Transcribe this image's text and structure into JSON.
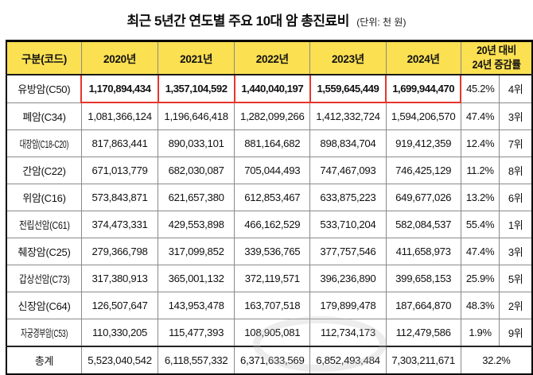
{
  "title": "최근 5년간 연도별 주요 10대 암 총진료비",
  "unit_note": "(단위: 천 원)",
  "colors": {
    "header_bg": "#FBE052",
    "highlight_border": "#E5362B",
    "grid_line": "#8A8A8A",
    "outer_border": "#000000"
  },
  "chart_data": {
    "type": "table",
    "title": "최근 5년간 연도별 주요 10대 암 총진료비",
    "unit": "천 원",
    "columns": [
      "구분(코드)",
      "2020년",
      "2021년",
      "2022년",
      "2023년",
      "2024년"
    ],
    "change_header": [
      "20년 대비",
      "24년 증감률"
    ],
    "rows": [
      {
        "label": "유방암(C50)",
        "values": [
          "1,170,894,434",
          "1,357,104,592",
          "1,440,040,197",
          "1,559,645,449",
          "1,699,944,470"
        ],
        "change_pct": "45.2%",
        "rank": "4위",
        "highlight": true
      },
      {
        "label": "폐암(C34)",
        "values": [
          "1,081,366,124",
          "1,196,646,418",
          "1,282,099,266",
          "1,412,332,724",
          "1,594,206,570"
        ],
        "change_pct": "47.4%",
        "rank": "3위",
        "highlight": false
      },
      {
        "label": "대장암(C18-C20)",
        "values": [
          "817,863,441",
          "890,033,101",
          "881,164,682",
          "898,834,704",
          "919,412,359"
        ],
        "change_pct": "12.4%",
        "rank": "7위",
        "highlight": false
      },
      {
        "label": "간암(C22)",
        "values": [
          "671,013,779",
          "682,030,087",
          "705,044,493",
          "747,467,093",
          "746,425,129"
        ],
        "change_pct": "11.2%",
        "rank": "8위",
        "highlight": false
      },
      {
        "label": "위암(C16)",
        "values": [
          "573,843,871",
          "621,657,380",
          "612,853,467",
          "633,875,223",
          "649,677,026"
        ],
        "change_pct": "13.2%",
        "rank": "6위",
        "highlight": false
      },
      {
        "label": "전립선암(C61)",
        "values": [
          "374,473,331",
          "429,553,898",
          "466,162,529",
          "533,710,204",
          "582,084,537"
        ],
        "change_pct": "55.4%",
        "rank": "1위",
        "highlight": false
      },
      {
        "label": "췌장암(C25)",
        "values": [
          "279,366,798",
          "317,099,852",
          "339,536,765",
          "377,757,546",
          "411,658,973"
        ],
        "change_pct": "47.4%",
        "rank": "3위",
        "highlight": false
      },
      {
        "label": "갑상선암(C73)",
        "values": [
          "317,380,913",
          "365,001,132",
          "372,119,571",
          "396,236,890",
          "399,658,153"
        ],
        "change_pct": "25.9%",
        "rank": "5위",
        "highlight": false
      },
      {
        "label": "신장암(C64)",
        "values": [
          "126,507,647",
          "143,953,478",
          "163,707,518",
          "179,899,478",
          "187,664,870"
        ],
        "change_pct": "48.3%",
        "rank": "2위",
        "highlight": false
      },
      {
        "label": "자궁경부암(C53)",
        "values": [
          "110,330,205",
          "115,477,393",
          "108,905,081",
          "112,734,173",
          "112,479,586"
        ],
        "change_pct": "1.9%",
        "rank": "9위",
        "highlight": false
      }
    ],
    "total_row": {
      "label": "총계",
      "values": [
        "5,523,040,542",
        "6,118,557,332",
        "6,371,633,569",
        "6,852,493,484",
        "7,303,211,671"
      ],
      "change_pct": "32.2%"
    }
  }
}
